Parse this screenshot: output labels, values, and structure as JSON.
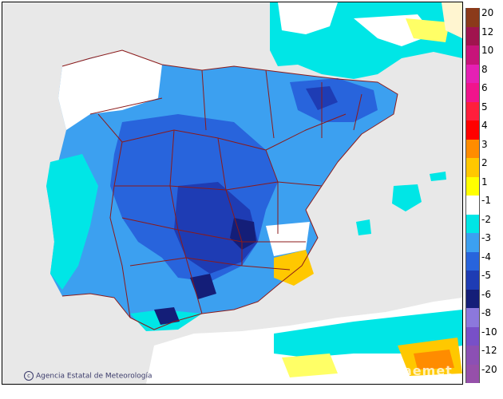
{
  "credit": {
    "icon": "copyright-icon",
    "text": "Agencia Estatal de Meteorología"
  },
  "logo": {
    "text": "aemet"
  },
  "legend": {
    "items": [
      {
        "label": "20",
        "color": "#8b3a1a"
      },
      {
        "label": "12",
        "color": "#a0144e"
      },
      {
        "label": "10",
        "color": "#c8147a"
      },
      {
        "label": "8",
        "color": "#e620b4"
      },
      {
        "label": "6",
        "color": "#f0148c"
      },
      {
        "label": "5",
        "color": "#ff1e3c"
      },
      {
        "label": "4",
        "color": "#ff0000"
      },
      {
        "label": "3",
        "color": "#ff8c00"
      },
      {
        "label": "2",
        "color": "#ffc800"
      },
      {
        "label": "1",
        "color": "#ffff00"
      },
      {
        "label": "-1",
        "color": "#ffffff"
      },
      {
        "label": "-2",
        "color": "#00e6e6"
      },
      {
        "label": "-3",
        "color": "#3ca0f0"
      },
      {
        "label": "-4",
        "color": "#2864dc"
      },
      {
        "label": "-5",
        "color": "#1e3cb4"
      },
      {
        "label": "-6",
        "color": "#141e78"
      },
      {
        "label": "-8",
        "color": "#8c78dc"
      },
      {
        "label": "-10",
        "color": "#7850c8"
      },
      {
        "label": "-12",
        "color": "#8c50b4"
      },
      {
        "label": "-20",
        "color": "#9650aa"
      }
    ]
  },
  "colors": {
    "border_line": "#8b1a1a",
    "sea": "#e8e8e8",
    "land_outside": "#ffffff"
  }
}
